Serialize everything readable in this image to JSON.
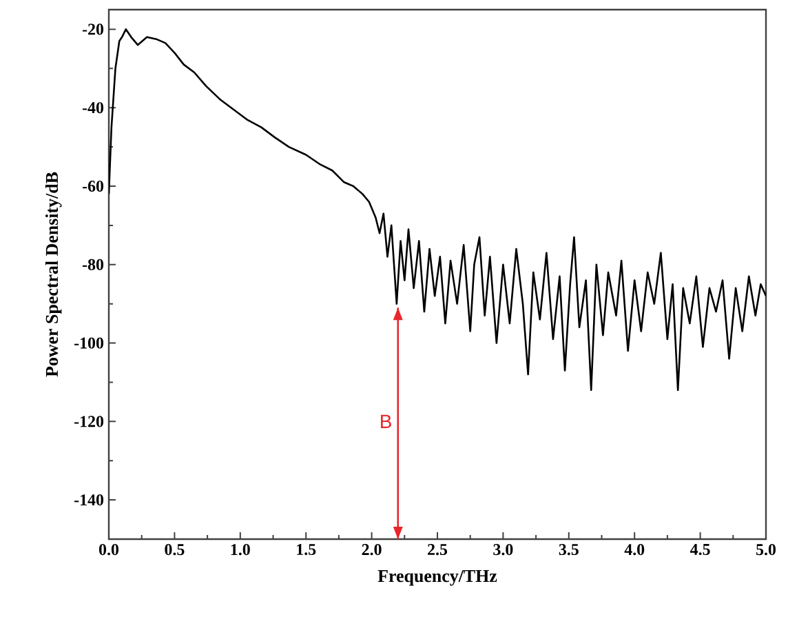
{
  "chart_data": {
    "type": "line",
    "xlabel": "Frequency/THz",
    "ylabel": "Power Spectral Density/dB",
    "x": [
      0,
      0.02,
      0.05,
      0.08,
      0.1,
      0.13,
      0.17,
      0.22,
      0.29,
      0.36,
      0.43,
      0.5,
      0.57,
      0.65,
      0.74,
      0.85,
      0.95,
      1.05,
      1.16,
      1.26,
      1.37,
      1.5,
      1.61,
      1.7,
      1.79,
      1.86,
      1.93,
      1.98,
      2.03,
      2.06,
      2.09,
      2.12,
      2.15,
      2.19,
      2.22,
      2.25,
      2.28,
      2.32,
      2.36,
      2.4,
      2.44,
      2.48,
      2.52,
      2.56,
      2.6,
      2.65,
      2.7,
      2.75,
      2.78,
      2.82,
      2.86,
      2.9,
      2.95,
      3.0,
      3.05,
      3.1,
      3.15,
      3.19,
      3.23,
      3.28,
      3.33,
      3.38,
      3.43,
      3.47,
      3.51,
      3.54,
      3.58,
      3.63,
      3.67,
      3.71,
      3.76,
      3.8,
      3.86,
      3.9,
      3.95,
      4.0,
      4.05,
      4.1,
      4.15,
      4.2,
      4.25,
      4.29,
      4.33,
      4.37,
      4.42,
      4.47,
      4.52,
      4.57,
      4.62,
      4.67,
      4.72,
      4.77,
      4.82,
      4.87,
      4.92,
      4.96,
      5.0
    ],
    "series": [
      {
        "color": "#000000",
        "values": [
          -62,
          -45,
          -30,
          -23,
          -22,
          -20,
          -22,
          -24,
          -22,
          -22.5,
          -23.5,
          -26,
          -29,
          -31,
          -34.5,
          -38,
          -40.5,
          -43,
          -45,
          -47.5,
          -50,
          -52,
          -54.5,
          -56,
          -59,
          -60,
          -62,
          -64,
          -68,
          -72,
          -67,
          -78,
          -70,
          -90,
          -74,
          -84,
          -71,
          -86,
          -74,
          -92,
          -76,
          -88,
          -78,
          -95,
          -79,
          -90,
          -75,
          -97,
          -80,
          -73,
          -93,
          -78,
          -100,
          -80,
          -95,
          -76,
          -90,
          -108,
          -82,
          -94,
          -77,
          -99,
          -83,
          -107,
          -85,
          -73,
          -96,
          -84,
          -112,
          -80,
          -98,
          -82,
          -93,
          -79,
          -102,
          -84,
          -97,
          -82,
          -90,
          -77,
          -99,
          -85,
          -112,
          -86,
          -95,
          -83,
          -101,
          -86,
          -92,
          -84,
          -104,
          -86,
          -97,
          -83,
          -93,
          -85,
          -88
        ]
      },
      {
        "type": "line",
        "color": "#e8262b",
        "x": [
          2.2,
          2.2
        ],
        "values": [
          -91,
          -150
        ]
      }
    ],
    "xlim": [
      0,
      5
    ],
    "ylim": [
      -150,
      -15
    ],
    "xticks": [
      {
        "value": 0,
        "label": "0.0"
      },
      {
        "value": 0.5,
        "label": "0.5"
      },
      {
        "value": 1,
        "label": "1.0"
      },
      {
        "value": 1.5,
        "label": "1.5"
      },
      {
        "value": 2,
        "label": "2.0"
      },
      {
        "value": 2.5,
        "label": "2.5"
      },
      {
        "value": 3,
        "label": "3.0"
      },
      {
        "value": 3.5,
        "label": "3.5"
      },
      {
        "value": 4,
        "label": "4.0"
      },
      {
        "value": 4.5,
        "label": "4.5"
      },
      {
        "value": 5,
        "label": "5.0"
      }
    ],
    "yticks": [
      -140,
      -120,
      -100,
      -80,
      -60,
      -40,
      -20
    ],
    "annotations": [
      {
        "text": "B",
        "x": 2.2,
        "y": -120
      }
    ],
    "grid": false,
    "marker": "none",
    "line_style": "solid"
  }
}
